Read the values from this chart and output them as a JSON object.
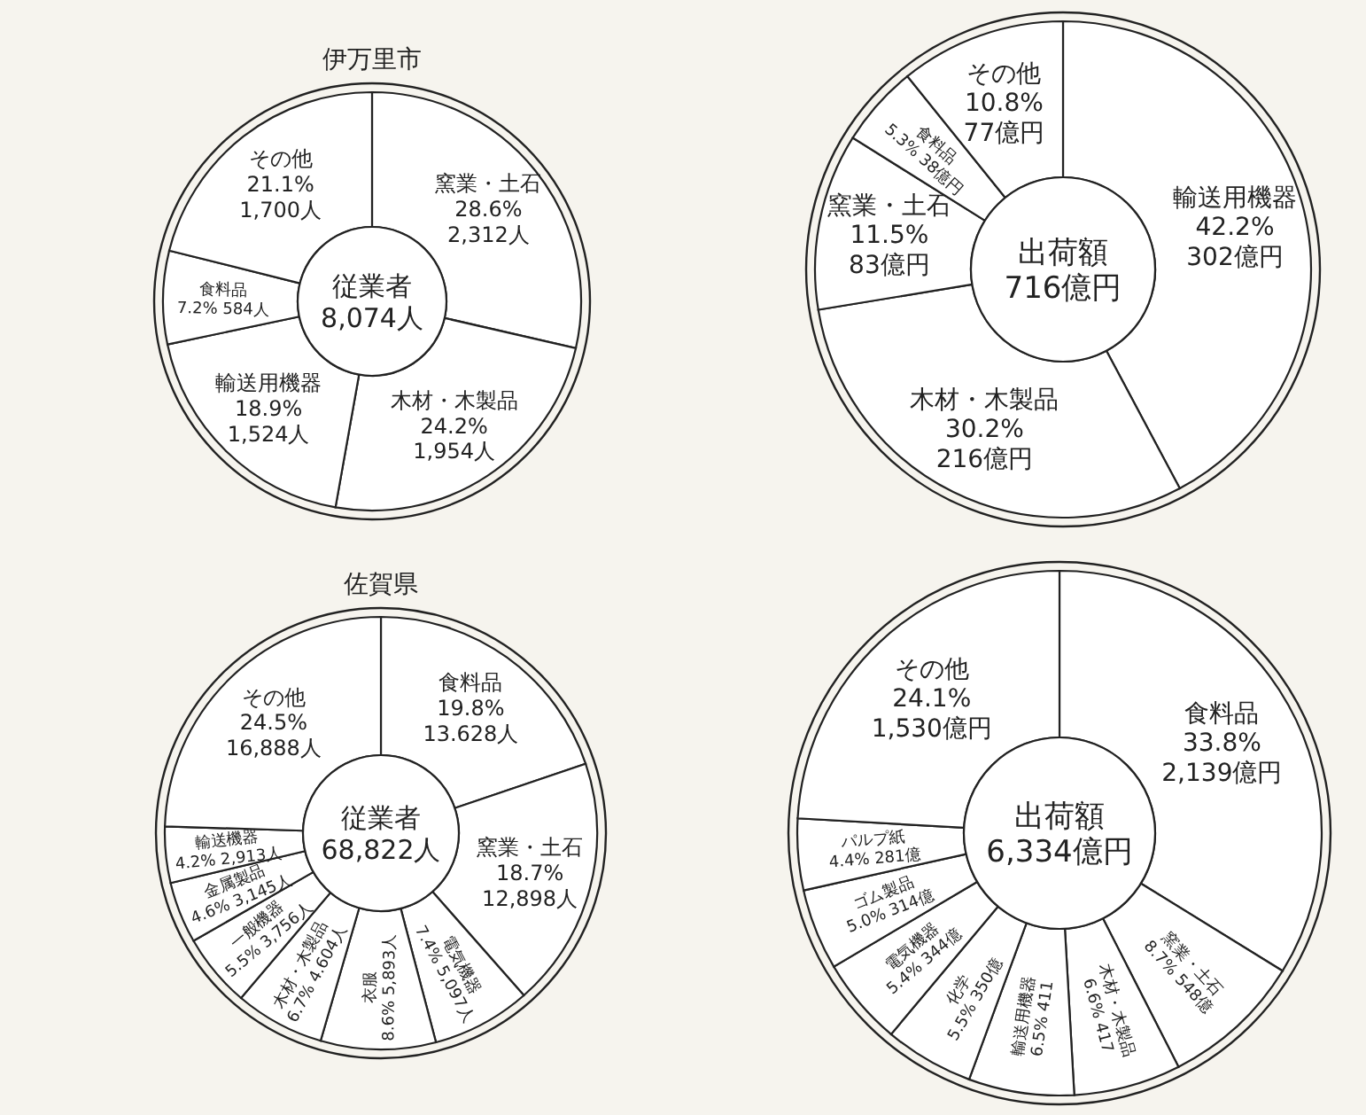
{
  "chart_data": [
    {
      "type": "donut",
      "title": "伊万里市",
      "annotations": [
        "従業者",
        "8,074人"
      ],
      "categories": [
        "窯業・土石",
        "木材・木製品",
        "輸送用機器",
        "食料品",
        "その他"
      ],
      "values": [
        28.6,
        24.2,
        18.9,
        7.2,
        21.1
      ],
      "value_labels": [
        "28.6% 2,312人",
        "24.2% 1,954人",
        "18.9% 1,524人",
        "7.2% 584人",
        "21.1% 1,700人"
      ],
      "colors": [
        "#ffffff",
        "#ffffff",
        "#ffffff",
        "#ffffff",
        "#ffffff"
      ],
      "legend": false
    },
    {
      "type": "donut",
      "annotations": [
        "出荷額",
        "716億円"
      ],
      "categories": [
        "輸送用機器",
        "木材・木製品",
        "窯業・土石",
        "食料品",
        "その他"
      ],
      "values": [
        42.2,
        30.2,
        11.5,
        5.3,
        10.8
      ],
      "value_labels": [
        "42.2% 302億円",
        "30.2% 216億円",
        "11.5% 83億円",
        "5.3% 38億円",
        "10.8% 77億円"
      ],
      "colors": [
        "#ffffff",
        "#ffffff",
        "#ffffff",
        "#ffffff",
        "#ffffff"
      ],
      "legend": false
    },
    {
      "type": "donut",
      "title": "佐賀県",
      "annotations": [
        "従業者",
        "68,822人"
      ],
      "categories": [
        "食料品",
        "窯業・土石",
        "電気機器",
        "衣服",
        "木材・木製品",
        "一般機器",
        "金属製品",
        "輸送機器",
        "その他"
      ],
      "values": [
        19.8,
        18.7,
        7.4,
        8.6,
        6.7,
        5.5,
        4.6,
        4.2,
        24.5
      ],
      "value_labels": [
        "19.8% 13.628人",
        "18.7% 12,898人",
        "7.4% 5,097人",
        "8.6% 5,893人",
        "6.7% 4.604人",
        "5.5% 3,756人",
        "4.6% 3,145人",
        "4.2% 2,913人",
        "24.5% 16,888人"
      ],
      "colors": [
        "#ffffff",
        "#ffffff",
        "#ffffff",
        "#ffffff",
        "#ffffff",
        "#ffffff",
        "#ffffff",
        "#ffffff",
        "#ffffff"
      ],
      "legend": false
    },
    {
      "type": "donut",
      "annotations": [
        "出荷額",
        "6,334億円"
      ],
      "categories": [
        "食料品",
        "窯業・土石",
        "木材・木製品",
        "輸送用機器",
        "化学",
        "電気機器",
        "ゴム製品",
        "パルプ紙",
        "その他"
      ],
      "values": [
        33.8,
        8.7,
        6.6,
        6.5,
        5.5,
        5.4,
        5.0,
        4.4,
        24.1
      ],
      "value_labels": [
        "33.8% 2,139億円",
        "8.7% 548億",
        "6.6% 417",
        "6.5% 411",
        "5.5% 350億",
        "5.4% 344億",
        "5.0% 314億",
        "4.4% 281億",
        "24.1% 1,530億円"
      ],
      "colors": [
        "#ffffff",
        "#ffffff",
        "#ffffff",
        "#ffffff",
        "#ffffff",
        "#ffffff",
        "#ffffff",
        "#ffffff",
        "#ffffff"
      ],
      "legend": false
    }
  ]
}
